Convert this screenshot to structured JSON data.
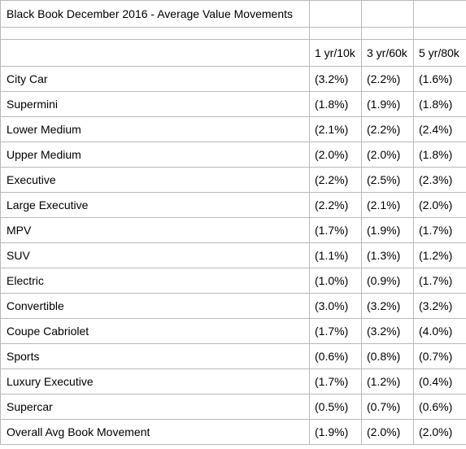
{
  "table": {
    "title": "Black Book December 2016 - Average Value Movements",
    "columns": [
      "1 yr/10k",
      "3 yr/60k",
      "5 yr/80k"
    ],
    "rows": [
      {
        "label": "City Car",
        "values": [
          "(3.2%)",
          "(2.2%)",
          "(1.6%)"
        ]
      },
      {
        "label": "Supermini",
        "values": [
          "(1.8%)",
          "(1.9%)",
          "(1.8%)"
        ]
      },
      {
        "label": "Lower Medium",
        "values": [
          "(2.1%)",
          "(2.2%)",
          "(2.4%)"
        ]
      },
      {
        "label": "Upper Medium",
        "values": [
          "(2.0%)",
          "(2.0%)",
          "(1.8%)"
        ]
      },
      {
        "label": "Executive",
        "values": [
          "(2.2%)",
          "(2.5%)",
          "(2.3%)"
        ]
      },
      {
        "label": "Large Executive",
        "values": [
          "(2.2%)",
          "(2.1%)",
          "(2.0%)"
        ]
      },
      {
        "label": "MPV",
        "values": [
          "(1.7%)",
          "(1.9%)",
          "(1.7%)"
        ]
      },
      {
        "label": "SUV",
        "values": [
          "(1.1%)",
          "(1.3%)",
          "(1.2%)"
        ]
      },
      {
        "label": "Electric",
        "values": [
          "(1.0%)",
          "(0.9%)",
          "(1.7%)"
        ]
      },
      {
        "label": "Convertible",
        "values": [
          "(3.0%)",
          "(3.2%)",
          "(3.2%)"
        ]
      },
      {
        "label": "Coupe Cabriolet",
        "values": [
          "(1.7%)",
          "(3.2%)",
          "(4.0%)"
        ]
      },
      {
        "label": "Sports",
        "values": [
          "(0.6%)",
          "(0.8%)",
          "(0.7%)"
        ]
      },
      {
        "label": "Luxury Executive",
        "values": [
          "(1.7%)",
          "(1.2%)",
          "(0.4%)"
        ]
      },
      {
        "label": "Supercar",
        "values": [
          "(0.5%)",
          "(0.7%)",
          "(0.6%)"
        ]
      },
      {
        "label": "Overall Avg Book Movement",
        "values": [
          "(1.9%)",
          "(2.0%)",
          "(2.0%)"
        ]
      }
    ]
  }
}
